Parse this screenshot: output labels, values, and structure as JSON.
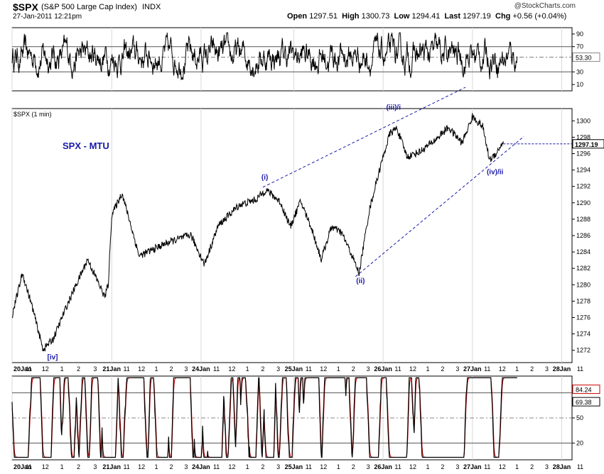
{
  "header": {
    "symbol": "$SPX",
    "name": "(S&P 500 Large Cap Index)",
    "exchange": "INDX",
    "brand": "@StockCharts.com",
    "datetime": "27-Jan-2011 12:21pm",
    "open_label": "Open",
    "open": "1297.51",
    "high_label": "High",
    "high": "1300.73",
    "low_label": "Low",
    "low": "1294.41",
    "last_label": "Last",
    "last": "1297.19",
    "chg_label": "Chg",
    "chg": "+0.56 (+0.04%)"
  },
  "chart_data": [
    {
      "type": "line",
      "panel": "upper oscillator",
      "ylim": [
        0,
        100
      ],
      "yticks": [
        "90",
        "70",
        "30",
        "10"
      ],
      "reference_lines": [
        70,
        30
      ],
      "dash_line": 53.3,
      "last_value_label": "53.30",
      "note": "oscillating series between ~20 and ~90"
    },
    {
      "type": "line",
      "panel": "price",
      "label": "$SPX (1 min)",
      "annotation": "SPX - MTU",
      "ylim": [
        1270.5,
        1301.5
      ],
      "yticks": [
        "1300",
        "1298",
        "1296",
        "1294",
        "1292",
        "1290",
        "1288",
        "1286",
        "1284",
        "1282",
        "1280",
        "1278",
        "1276",
        "1274",
        "1272"
      ],
      "last_price_label": "1297.19",
      "last_price": 1297.19,
      "waypoints": [
        {
          "x": 0,
          "y": 1276.2
        },
        {
          "x": 3,
          "y": 1281.4
        },
        {
          "x": 6,
          "y": 1277.1
        },
        {
          "x": 9,
          "y": 1272.1
        },
        {
          "x": 12,
          "y": 1273.4
        },
        {
          "x": 16,
          "y": 1277.5
        },
        {
          "x": 22,
          "y": 1283.1
        },
        {
          "x": 27,
          "y": 1278.5
        },
        {
          "x": 28,
          "y": 1280.1
        },
        {
          "x": 29,
          "y": 1288.5
        },
        {
          "x": 32,
          "y": 1291.2
        },
        {
          "x": 37,
          "y": 1283.5
        },
        {
          "x": 45,
          "y": 1285.1
        },
        {
          "x": 52,
          "y": 1286.1
        },
        {
          "x": 56,
          "y": 1282.5
        },
        {
          "x": 60,
          "y": 1287.2
        },
        {
          "x": 66,
          "y": 1289.7
        },
        {
          "x": 71,
          "y": 1290.4
        },
        {
          "x": 74,
          "y": 1291.6
        },
        {
          "x": 78,
          "y": 1290.1
        },
        {
          "x": 81,
          "y": 1287.1
        },
        {
          "x": 84,
          "y": 1290.2
        },
        {
          "x": 87,
          "y": 1287.1
        },
        {
          "x": 90,
          "y": 1283.1
        },
        {
          "x": 93,
          "y": 1287.1
        },
        {
          "x": 96,
          "y": 1286.3
        },
        {
          "x": 99,
          "y": 1283.5
        },
        {
          "x": 101,
          "y": 1281.4
        },
        {
          "x": 104,
          "y": 1289.1
        },
        {
          "x": 107,
          "y": 1294.1
        },
        {
          "x": 110,
          "y": 1298.5
        },
        {
          "x": 112,
          "y": 1299.1
        },
        {
          "x": 115,
          "y": 1295.6
        },
        {
          "x": 119,
          "y": 1296.3
        },
        {
          "x": 123,
          "y": 1297.6
        },
        {
          "x": 127,
          "y": 1299.2
        },
        {
          "x": 131,
          "y": 1297.3
        },
        {
          "x": 134,
          "y": 1300.5
        },
        {
          "x": 137,
          "y": 1299.3
        },
        {
          "x": 139,
          "y": 1295.2
        },
        {
          "x": 141,
          "y": 1296.1
        },
        {
          "x": 143,
          "y": 1297.5
        }
      ],
      "waves": [
        {
          "label": "[iv]",
          "x": 9,
          "y": 1272.1
        },
        {
          "label": "(i)",
          "x": 73,
          "y": 1291.7
        },
        {
          "label": "(ii)",
          "x": 101,
          "y": 1281.4
        },
        {
          "label": "(iii)/i",
          "x": 112,
          "y": 1299.3
        },
        {
          "label": "(iv)/ii",
          "x": 139,
          "y": 1294.6
        }
      ],
      "trendlines": [
        {
          "from": {
            "x": 73,
            "y": 1291.9
          },
          "to": {
            "x": 132,
            "y": 1304.1
          }
        },
        {
          "from": {
            "x": 100,
            "y": 1281.0
          },
          "to": {
            "x": 149,
            "y": 1298.1
          }
        }
      ]
    },
    {
      "type": "line",
      "panel": "lower oscillator",
      "ylim": [
        0,
        100
      ],
      "yticks": [
        "50",
        "20"
      ],
      "reference_lines": [
        80,
        20
      ],
      "last_value_labels": [
        "84.24",
        "69.38"
      ],
      "note": "stochastic-style fast oscillator, black and red lines"
    }
  ],
  "x_axis": {
    "day_labels": [
      {
        "x": 0,
        "label": "20Jan"
      },
      {
        "x": 29,
        "label": "21Jan"
      },
      {
        "x": 55,
        "label": "24Jan"
      },
      {
        "x": 82,
        "label": "25Jan"
      },
      {
        "x": 108,
        "label": "26Jan"
      },
      {
        "x": 134,
        "label": "27Jan"
      },
      {
        "x": 160,
        "label": "28Jan"
      }
    ],
    "hour_labels": [
      "11",
      "12",
      "1",
      "2",
      "3"
    ],
    "after_27jan": [
      "11",
      "12",
      "1",
      "2",
      "3"
    ]
  },
  "colors": {
    "wave_blue": "#1a1aa8",
    "osc_red": "#cc0000",
    "grid": "#bfbfbf"
  }
}
